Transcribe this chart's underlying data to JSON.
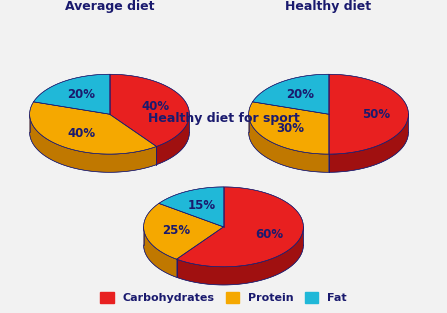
{
  "charts": [
    {
      "title": "Average diet",
      "values": [
        40,
        40,
        20
      ],
      "labels": [
        "40%",
        "40%",
        "20%"
      ],
      "start_angle": 90
    },
    {
      "title": "Healthy diet",
      "values": [
        50,
        30,
        20
      ],
      "labels": [
        "50%",
        "30%",
        "20%"
      ],
      "start_angle": 90
    },
    {
      "title": "Healthy diet for sport",
      "values": [
        60,
        25,
        15
      ],
      "labels": [
        "60%",
        "25%",
        "15%"
      ],
      "start_angle": 90
    }
  ],
  "pie_colors": [
    "#e82020",
    "#f5a800",
    "#20b8d8"
  ],
  "side_colors": [
    "#a01010",
    "#c07800",
    "#0080a8"
  ],
  "dark_side_color": "#1a1a6e",
  "edge_color": "#1a1a6e",
  "legend": {
    "labels": [
      "Carbohydrates",
      "Protein",
      "Fat"
    ],
    "colors": [
      "#e82020",
      "#f5a800",
      "#20b8d8"
    ]
  },
  "background": "#f2f2f2",
  "title_color": "#1a1a6e",
  "label_color": "#1a1a6e",
  "title_fontsize": 9,
  "label_fontsize": 8.5
}
